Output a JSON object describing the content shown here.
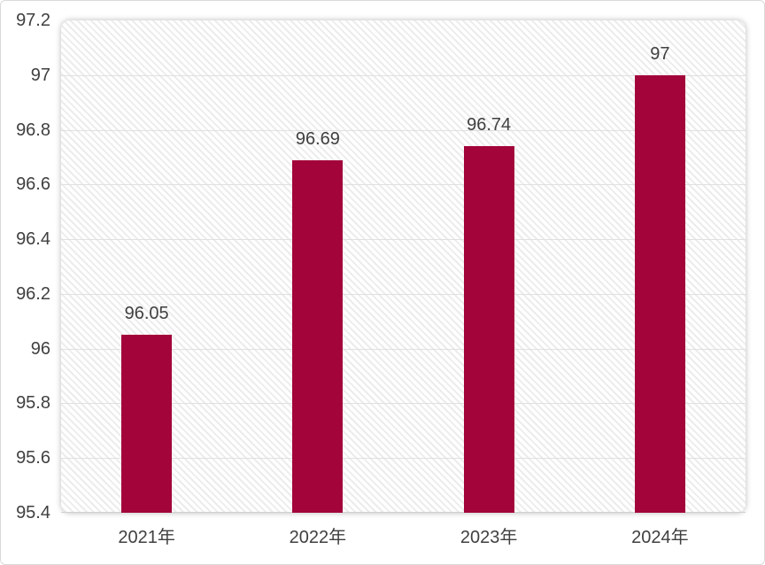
{
  "chart_data": {
    "type": "bar",
    "title": "",
    "xlabel": "",
    "ylabel": "",
    "categories": [
      "2021年",
      "2022年",
      "2023年",
      "2024年"
    ],
    "series": [
      {
        "name": "value",
        "values": [
          96.05,
          96.69,
          96.74,
          97
        ],
        "value_labels": [
          "96.05",
          "96.69",
          "96.74",
          "97"
        ]
      }
    ],
    "ylim": [
      95.4,
      97.2
    ],
    "ytick_interval": 0.2,
    "yticks": [
      {
        "v": 97.2,
        "label": "97.2"
      },
      {
        "v": 97.0,
        "label": "97"
      },
      {
        "v": 96.8,
        "label": "96.8"
      },
      {
        "v": 96.6,
        "label": "96.6"
      },
      {
        "v": 96.4,
        "label": "96.4"
      },
      {
        "v": 96.2,
        "label": "96.2"
      },
      {
        "v": 96.0,
        "label": "96"
      },
      {
        "v": 95.8,
        "label": "95.8"
      },
      {
        "v": 95.6,
        "label": "95.6"
      },
      {
        "v": 95.4,
        "label": "95.4"
      }
    ],
    "grid": true,
    "legend_position": "none",
    "data_labels": true,
    "colors": {
      "bar": "#A30439",
      "text": "#404040",
      "gridline": "#E0E0E0",
      "axis_line": "#D0D0D0",
      "plot_hatch_stripe": "#ECECEC",
      "plot_background": "#FFFFFF",
      "frame_border": "#D9D9D9"
    },
    "plot_background_style": "diagonal-hatch-stripes"
  }
}
